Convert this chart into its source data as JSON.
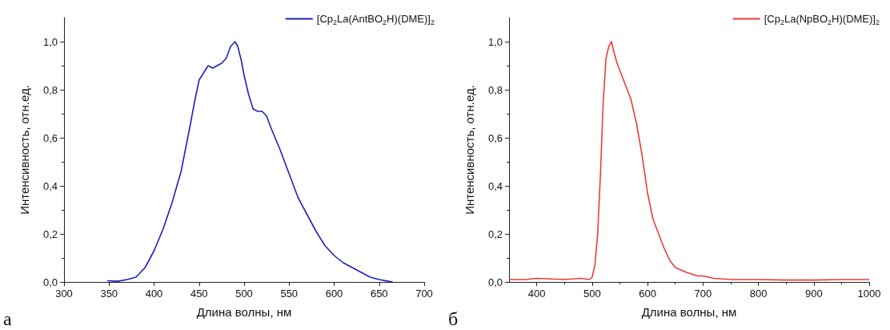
{
  "chart_data": [
    {
      "type": "line",
      "xlabel": "Длина волны, нм",
      "ylabel": "Интенсивность, отн.ед.",
      "legend": "top right",
      "grid": false,
      "marker": "none",
      "line_style": "solid",
      "xlim": [
        300,
        700
      ],
      "xticks": [
        300,
        350,
        400,
        450,
        500,
        550,
        600,
        650,
        700
      ],
      "ylim": [
        0,
        1.1
      ],
      "yticks": [
        {
          "value": 0,
          "label": "0,0"
        },
        {
          "value": 0.2,
          "label": "0,2"
        },
        {
          "value": 0.4,
          "label": "0,4"
        },
        {
          "value": 0.6,
          "label": "0,6"
        },
        {
          "value": 0.8,
          "label": "0,8"
        },
        {
          "value": 1.0,
          "label": "1,0"
        }
      ],
      "annotations": [
        "а"
      ],
      "series": [
        {
          "name": "[Cp$_{2}$La(AntBO$_{2}$H)(DME)]$_{2}$",
          "color": "#1a23b8",
          "x": [
            348,
            360,
            370,
            380,
            390,
            400,
            410,
            420,
            430,
            440,
            445,
            450,
            455,
            460,
            465,
            470,
            475,
            480,
            485,
            490,
            493,
            497,
            500,
            505,
            510,
            515,
            520,
            525,
            530,
            540,
            550,
            560,
            570,
            580,
            590,
            600,
            610,
            620,
            630,
            640,
            650,
            660,
            665
          ],
          "values": [
            0.005,
            0.003,
            0.01,
            0.02,
            0.06,
            0.13,
            0.22,
            0.33,
            0.46,
            0.65,
            0.75,
            0.84,
            0.87,
            0.9,
            0.89,
            0.9,
            0.91,
            0.93,
            0.98,
            1.0,
            0.98,
            0.92,
            0.86,
            0.78,
            0.72,
            0.71,
            0.71,
            0.69,
            0.64,
            0.55,
            0.45,
            0.35,
            0.28,
            0.21,
            0.15,
            0.11,
            0.08,
            0.06,
            0.04,
            0.02,
            0.01,
            0.003,
            0.0
          ]
        }
      ]
    },
    {
      "type": "line",
      "xlabel": "Длина волны, нм",
      "ylabel": "Интенсивность, отн.ед.",
      "legend": "top right",
      "grid": false,
      "marker": "none",
      "line_style": "solid",
      "xlim": [
        350,
        1000
      ],
      "xticks": [
        400,
        500,
        600,
        700,
        800,
        900,
        1000
      ],
      "ylim": [
        0,
        1.1
      ],
      "yticks": [
        {
          "value": 0,
          "label": "0,0"
        },
        {
          "value": 0.2,
          "label": "0,2"
        },
        {
          "value": 0.4,
          "label": "0,4"
        },
        {
          "value": 0.6,
          "label": "0,6"
        },
        {
          "value": 0.8,
          "label": "0,8"
        },
        {
          "value": 1.0,
          "label": "1,0"
        }
      ],
      "annotations": [
        "б"
      ],
      "series": [
        {
          "name": "[Cp$_{2}$La(NpBO$_{2}$H)(DME)]$_{2}$",
          "color": "#ee3b3b",
          "x": [
            350,
            380,
            400,
            450,
            480,
            495,
            500,
            505,
            510,
            515,
            520,
            525,
            530,
            535,
            540,
            545,
            550,
            560,
            570,
            580,
            590,
            600,
            610,
            620,
            630,
            640,
            650,
            660,
            670,
            690,
            700,
            720,
            750,
            800,
            850,
            900,
            950,
            1000
          ],
          "values": [
            0.01,
            0.01,
            0.015,
            0.01,
            0.015,
            0.01,
            0.02,
            0.07,
            0.2,
            0.45,
            0.75,
            0.93,
            0.98,
            1.0,
            0.95,
            0.91,
            0.88,
            0.82,
            0.76,
            0.66,
            0.53,
            0.37,
            0.26,
            0.2,
            0.14,
            0.09,
            0.06,
            0.05,
            0.04,
            0.025,
            0.025,
            0.015,
            0.01,
            0.01,
            0.008,
            0.008,
            0.01,
            0.01
          ]
        }
      ]
    }
  ]
}
